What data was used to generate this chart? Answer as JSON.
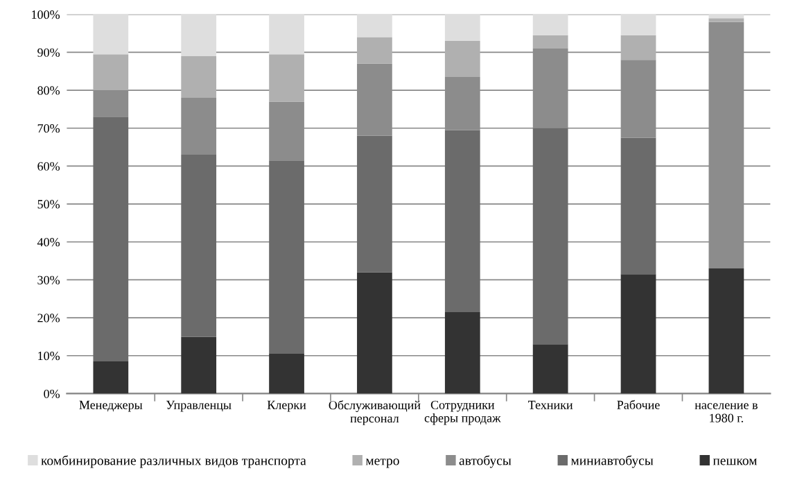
{
  "chart_data": {
    "type": "bar",
    "stacked": true,
    "categories": [
      "Менеджеры",
      "Управленцы",
      "Клерки",
      "Обслуживающий персонал",
      "Сотрудники сферы продаж",
      "Техники",
      "Рабочие",
      "население в 1980 г."
    ],
    "series": [
      {
        "name": "пешком",
        "color": "#333333",
        "values": [
          8.5,
          15,
          10.5,
          32,
          21.5,
          13,
          31.5,
          33
        ]
      },
      {
        "name": "миниавтобусы",
        "color": "#6b6b6b",
        "values": [
          64.5,
          48,
          51,
          36,
          48,
          57,
          36,
          0
        ]
      },
      {
        "name": "автобусы",
        "color": "#8c8c8c",
        "values": [
          7,
          15,
          15.5,
          19,
          14,
          21,
          20.5,
          65
        ]
      },
      {
        "name": "метро",
        "color": "#b0b0b0",
        "values": [
          9.5,
          11,
          12.5,
          7,
          9.5,
          3.5,
          6.5,
          1
        ]
      },
      {
        "name": "комбинирование различных видов транспорта",
        "color": "#dedede",
        "values": [
          10.5,
          11,
          10.5,
          6,
          7,
          5.5,
          5.5,
          1
        ]
      }
    ],
    "ylim": [
      0,
      100
    ],
    "yticks": [
      {
        "value": 0,
        "label": "0%"
      },
      {
        "value": 10,
        "label": "10%"
      },
      {
        "value": 20,
        "label": "20%"
      },
      {
        "value": 30,
        "label": "30%"
      },
      {
        "value": 40,
        "label": "40%"
      },
      {
        "value": 50,
        "label": "50%"
      },
      {
        "value": 60,
        "label": "60%"
      },
      {
        "value": 70,
        "label": "70%"
      },
      {
        "value": 80,
        "label": "80%"
      },
      {
        "value": 90,
        "label": "90%"
      },
      {
        "value": 100,
        "label": "100%"
      }
    ],
    "grid": "y",
    "legend": "bottom"
  }
}
